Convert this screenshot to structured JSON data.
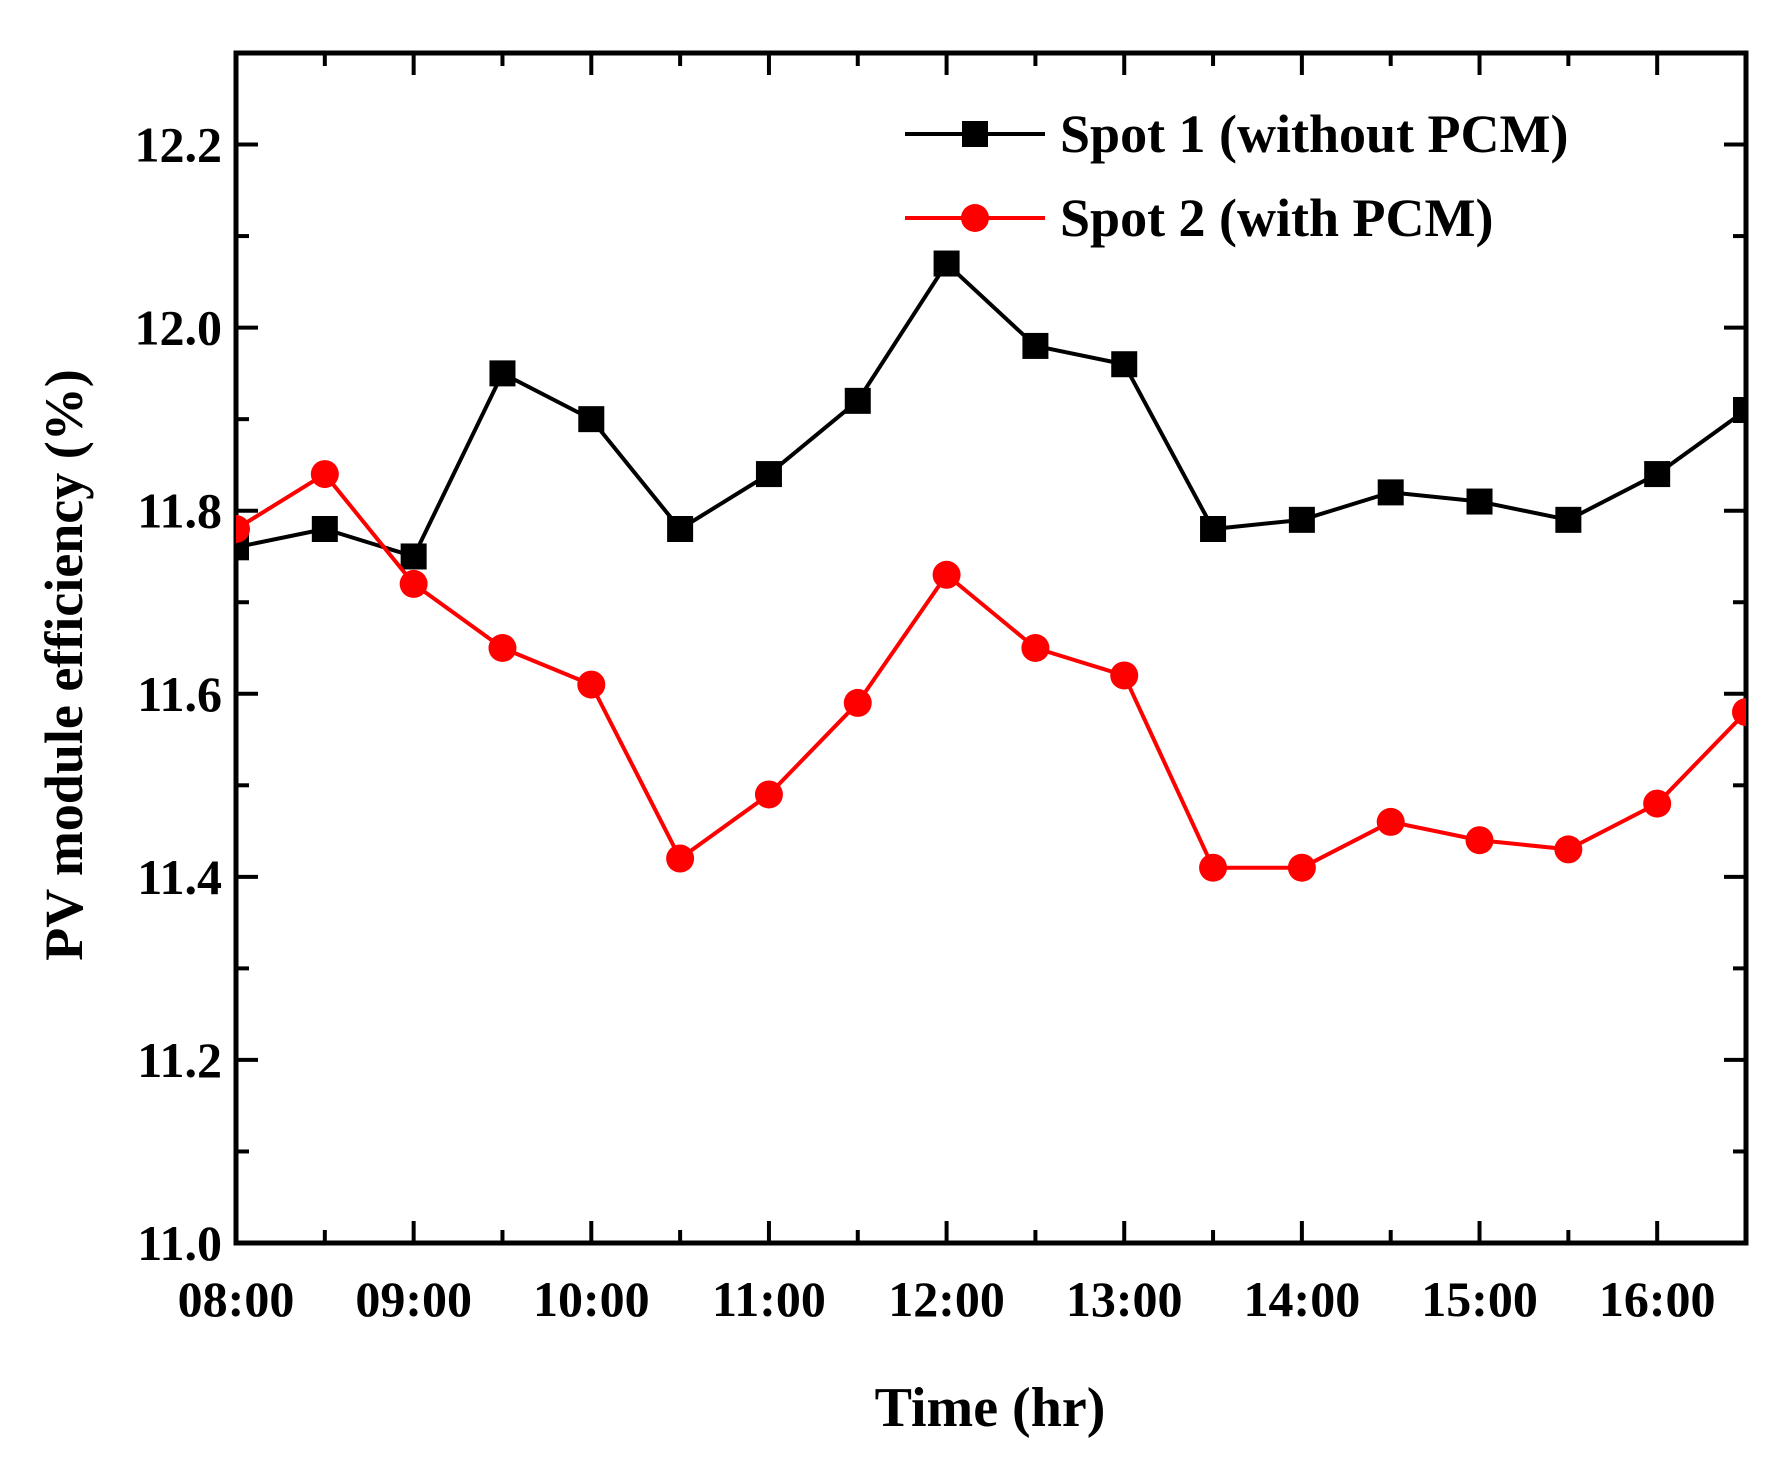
{
  "chart_data": {
    "type": "line",
    "title": "",
    "xlabel": "Time (hr)",
    "ylabel": "PV module efficiency (%)",
    "x": [
      8.0,
      8.5,
      9.0,
      9.5,
      10.0,
      10.5,
      11.0,
      11.5,
      12.0,
      12.5,
      13.0,
      13.5,
      14.0,
      14.5,
      15.0,
      15.5,
      16.0,
      16.5
    ],
    "xlim": [
      8.0,
      16.5
    ],
    "ylim": [
      11.0,
      12.3
    ],
    "xticks": [
      8,
      9,
      10,
      11,
      12,
      13,
      14,
      15,
      16
    ],
    "xtick_labels": [
      "08:00",
      "09:00",
      "10:00",
      "11:00",
      "12:00",
      "13:00",
      "14:00",
      "15:00",
      "16:00"
    ],
    "yticks": [
      11.0,
      11.2,
      11.4,
      11.6,
      11.8,
      12.0,
      12.2
    ],
    "ytick_labels": [
      "11.0",
      "11.2",
      "11.4",
      "11.6",
      "11.8",
      "12.0",
      "12.2"
    ],
    "legend_position": "top-right",
    "series": [
      {
        "name": "Spot 1 (without PCM)",
        "color": "#000000",
        "marker": "square",
        "values": [
          11.76,
          11.78,
          11.75,
          11.95,
          11.9,
          11.78,
          11.84,
          11.92,
          12.07,
          11.98,
          11.96,
          11.78,
          11.79,
          11.82,
          11.81,
          11.79,
          11.84,
          11.91
        ]
      },
      {
        "name": "Spot 2 (with PCM)",
        "color": "#ff0000",
        "marker": "circle",
        "values": [
          11.78,
          11.84,
          11.72,
          11.65,
          11.61,
          11.42,
          11.49,
          11.59,
          11.73,
          11.65,
          11.62,
          11.41,
          11.41,
          11.46,
          11.44,
          11.43,
          11.48,
          11.58
        ]
      }
    ]
  }
}
